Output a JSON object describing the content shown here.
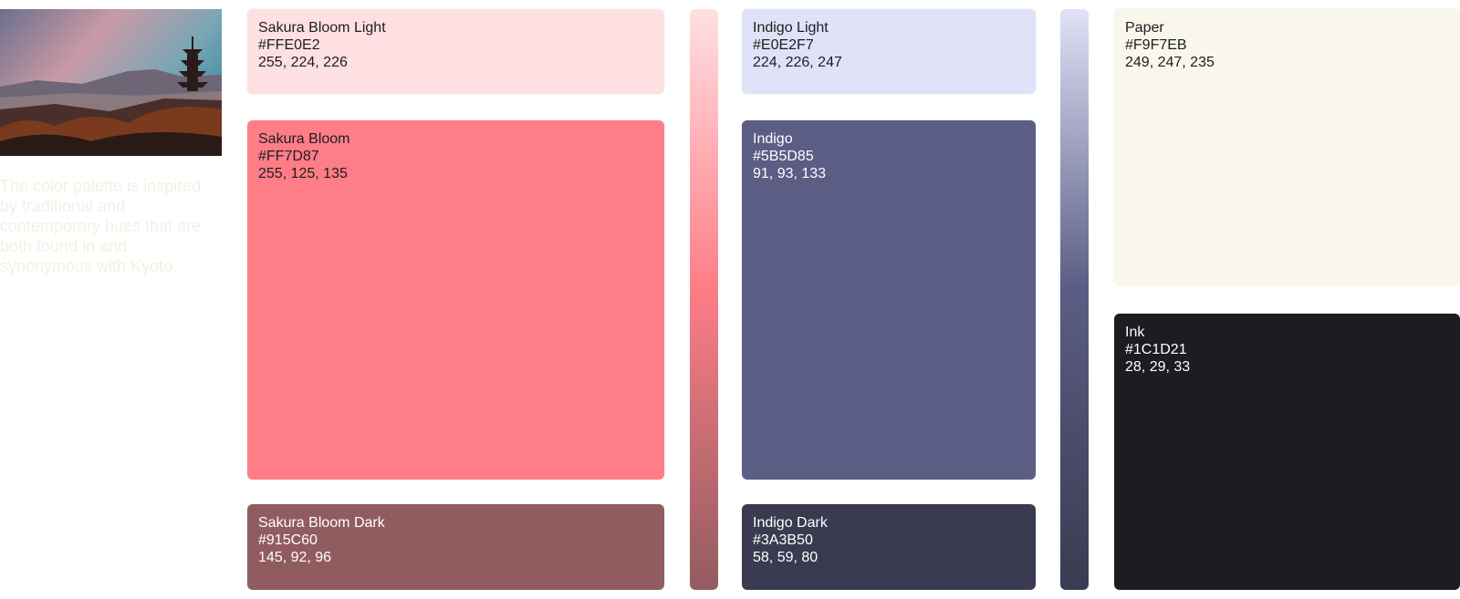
{
  "description": "The color palette is inspired by traditional and contemporary hues that are both found in and synonymous with Kyoto.",
  "palettes": [
    {
      "swatches": [
        {
          "name": "Sakura Bloom Light",
          "hex": "#FFE0E2",
          "rgb": "255, 224, 226"
        },
        {
          "name": "Sakura Bloom",
          "hex": "#FF7D87",
          "rgb": "255, 125, 135"
        },
        {
          "name": "Sakura Bloom Dark",
          "hex": "#915C60",
          "rgb": "145, 92, 96"
        }
      ]
    },
    {
      "swatches": [
        {
          "name": "Indigo Light",
          "hex": "#E0E2F7",
          "rgb": "224, 226, 247"
        },
        {
          "name": "Indigo",
          "hex": "#5B5D85",
          "rgb": "91, 93, 133"
        },
        {
          "name": "Indigo Dark",
          "hex": "#3A3B50",
          "rgb": "58, 59, 80"
        }
      ]
    },
    {
      "swatches": [
        {
          "name": "Paper",
          "hex": "#F9F7EB",
          "rgb": "249, 247, 235"
        },
        {
          "name": "Ink",
          "hex": "#1C1D21",
          "rgb": "28, 29, 33"
        }
      ]
    }
  ]
}
